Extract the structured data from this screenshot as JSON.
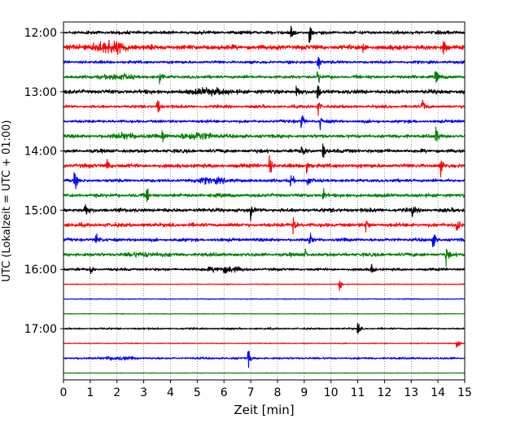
{
  "chart_data": {
    "type": "line",
    "subtype": "helicorder-seismogram",
    "xlabel": "Zeit  [min]",
    "ylabel": "UTC (Lokalzeit = UTC + 01:00)",
    "xlim": [
      0,
      15
    ],
    "x_ticks": [
      0,
      1,
      2,
      3,
      4,
      5,
      6,
      7,
      8,
      9,
      10,
      11,
      12,
      13,
      14,
      15
    ],
    "y_tick_labels": [
      "12:00",
      "13:00",
      "14:00",
      "15:00",
      "16:00",
      "17:00"
    ],
    "y_tick_trace_index": [
      0,
      4,
      8,
      12,
      16,
      20
    ],
    "vertical_grid": true,
    "grid_style": "dotted",
    "trace_colors": [
      "#000000",
      "#ff0000",
      "#0000ff",
      "#008000"
    ],
    "traces": [
      {
        "start": "12:00",
        "noise": 0.55,
        "events": [
          [
            8.5,
            1.0
          ],
          [
            9.2,
            1.0
          ]
        ]
      },
      {
        "start": "12:15",
        "noise": 0.8,
        "bursts": [
          [
            1.5,
            1.2
          ],
          [
            2.0,
            1.0
          ]
        ],
        "events": [
          [
            11.2,
            0.9
          ],
          [
            14.2,
            1.1
          ]
        ]
      },
      {
        "start": "12:30",
        "noise": 0.5,
        "events": [
          [
            9.5,
            1.2
          ]
        ]
      },
      {
        "start": "12:45",
        "noise": 0.55,
        "bursts": [
          [
            2.0,
            0.8
          ]
        ],
        "events": [
          [
            3.6,
            0.9
          ],
          [
            9.5,
            0.7
          ],
          [
            13.9,
            1.3
          ]
        ]
      },
      {
        "start": "13:00",
        "noise": 0.7,
        "bursts": [
          [
            5.5,
            1.0
          ]
        ],
        "events": [
          [
            8.7,
            1.0
          ],
          [
            9.5,
            0.8
          ]
        ]
      },
      {
        "start": "13:15",
        "noise": 0.5,
        "events": [
          [
            3.5,
            1.2
          ],
          [
            9.5,
            0.9
          ],
          [
            13.4,
            1.0
          ]
        ]
      },
      {
        "start": "13:30",
        "noise": 0.5,
        "events": [
          [
            8.9,
            1.0
          ],
          [
            9.6,
            0.7
          ]
        ]
      },
      {
        "start": "13:45",
        "noise": 0.6,
        "bursts": [
          [
            5.0,
            1.2
          ],
          [
            2.3,
            0.7
          ]
        ],
        "events": [
          [
            3.7,
            0.7
          ],
          [
            13.9,
            1.1
          ]
        ]
      },
      {
        "start": "14:00",
        "noise": 0.6,
        "events": [
          [
            8.9,
            0.8
          ],
          [
            9.7,
            0.8
          ]
        ]
      },
      {
        "start": "14:15",
        "noise": 0.65,
        "events": [
          [
            1.6,
            1.0
          ],
          [
            7.7,
            1.0
          ],
          [
            9.1,
            0.8
          ],
          [
            14.1,
            0.9
          ]
        ]
      },
      {
        "start": "14:30",
        "noise": 0.55,
        "bursts": [
          [
            5.5,
            0.9
          ]
        ],
        "events": [
          [
            0.4,
            1.1
          ],
          [
            8.5,
            1.0
          ],
          [
            9.1,
            1.0
          ]
        ]
      },
      {
        "start": "14:45",
        "noise": 0.6,
        "events": [
          [
            3.1,
            1.0
          ],
          [
            9.7,
            0.7
          ]
        ]
      },
      {
        "start": "15:00",
        "noise": 0.65,
        "events": [
          [
            0.8,
            0.9
          ],
          [
            7.0,
            0.7
          ],
          [
            13.0,
            0.8
          ]
        ]
      },
      {
        "start": "15:15",
        "noise": 0.65,
        "events": [
          [
            8.6,
            1.0
          ],
          [
            11.3,
            0.9
          ],
          [
            14.7,
            1.1
          ]
        ]
      },
      {
        "start": "15:30",
        "noise": 0.55,
        "events": [
          [
            1.2,
            0.9
          ],
          [
            9.2,
            0.6
          ],
          [
            13.8,
            1.1
          ]
        ]
      },
      {
        "start": "15:45",
        "noise": 0.6,
        "bursts": [
          [
            3.0,
            0.6
          ]
        ],
        "events": [
          [
            9.0,
            0.6
          ],
          [
            14.3,
            1.2
          ]
        ]
      },
      {
        "start": "16:00",
        "noise": 0.45,
        "bursts": [
          [
            6.0,
            1.0
          ]
        ],
        "events": [
          [
            1.0,
            0.6
          ],
          [
            11.5,
            0.7
          ]
        ]
      },
      {
        "start": "16:15",
        "noise": 0.12,
        "events": [
          [
            10.3,
            0.9
          ]
        ]
      },
      {
        "start": "16:30",
        "noise": 0.15,
        "events": []
      },
      {
        "start": "16:45",
        "noise": 0.12,
        "events": []
      },
      {
        "start": "17:00",
        "noise": 0.3,
        "events": [
          [
            11.0,
            0.6
          ]
        ]
      },
      {
        "start": "17:15",
        "noise": 0.15,
        "events": [
          [
            14.7,
            0.9
          ]
        ]
      },
      {
        "start": "17:30",
        "noise": 0.35,
        "bursts": [
          [
            2.0,
            0.5
          ]
        ],
        "events": [
          [
            6.9,
            1.0
          ]
        ]
      },
      {
        "start": "17:45",
        "noise": 0.1,
        "events": []
      }
    ]
  }
}
